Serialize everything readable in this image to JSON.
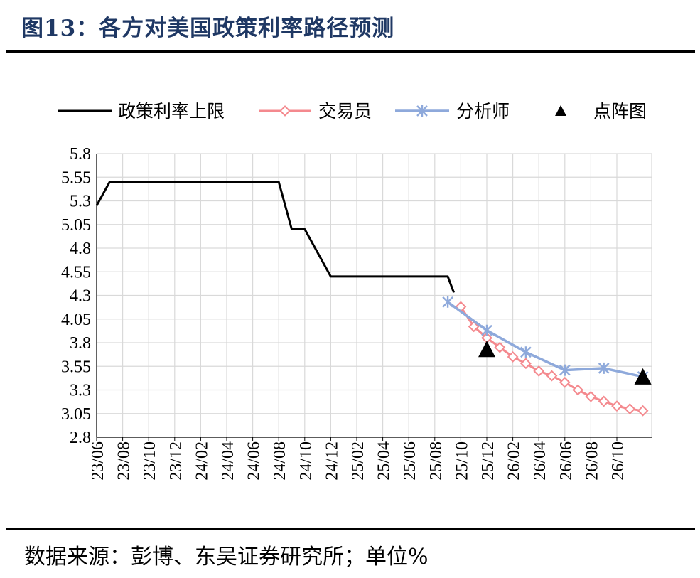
{
  "header": {
    "title": "图13：各方对美国政策利率路径预测"
  },
  "footer": {
    "source": "数据来源：彭博、东吴证券研究所；单位%"
  },
  "colors": {
    "policy": "#000000",
    "trader": "#f4898e",
    "analyst": "#8ea9db",
    "dotplot": "#000000",
    "grid": "#d9d9d9",
    "title": "#1f3864"
  },
  "chart_data": {
    "type": "line",
    "title": "",
    "xlabel": "",
    "ylabel": "",
    "ylim": [
      2.8,
      5.8
    ],
    "yticks": [
      "5.8",
      "5.55",
      "5.3",
      "5.05",
      "4.8",
      "4.55",
      "4.3",
      "4.05",
      "3.8",
      "3.55",
      "3.3",
      "3.05",
      "2.8"
    ],
    "xticks": [
      "23/06",
      "23/08",
      "23/10",
      "23/12",
      "24/02",
      "24/04",
      "24/06",
      "24/08",
      "24/10",
      "24/12",
      "25/02",
      "25/04",
      "25/06",
      "25/08",
      "25/10",
      "25/12",
      "26/02",
      "26/04",
      "26/06",
      "26/08",
      "26/10"
    ],
    "grid": true,
    "legend_position": "top",
    "series": [
      {
        "name": "政策利率上限",
        "marker": "none",
        "x": [
          "2023-06-01",
          "2023-07-01",
          "2024-08-01",
          "2024-09-01",
          "2024-10-01",
          "2024-12-01",
          "2025-09-01",
          "2025-09-15"
        ],
        "y": [
          5.25,
          5.5,
          5.5,
          5.0,
          5.0,
          4.5,
          4.5,
          4.33
        ]
      },
      {
        "name": "交易员",
        "marker": "diamond",
        "x": [
          "2025-10-01",
          "2025-11-01",
          "2025-12-01",
          "2026-01-01",
          "2026-02-01",
          "2026-03-01",
          "2026-04-01",
          "2026-05-01",
          "2026-06-01",
          "2026-07-01",
          "2026-08-01",
          "2026-09-01",
          "2026-10-01",
          "2026-11-01",
          "2026-12-01"
        ],
        "y": [
          4.18,
          3.97,
          3.85,
          3.75,
          3.65,
          3.58,
          3.5,
          3.45,
          3.38,
          3.3,
          3.23,
          3.18,
          3.13,
          3.1,
          3.08
        ]
      },
      {
        "name": "分析师",
        "marker": "x",
        "x": [
          "2025-09-01",
          "2025-12-01",
          "2026-03-01",
          "2026-06-01",
          "2026-09-01",
          "2026-12-01"
        ],
        "y": [
          4.23,
          3.93,
          3.7,
          3.51,
          3.53,
          3.44
        ]
      },
      {
        "name": "点阵图",
        "marker": "triangle",
        "x": [
          "2025-12-01",
          "2026-12-01"
        ],
        "y": [
          3.73,
          3.44
        ]
      }
    ]
  }
}
